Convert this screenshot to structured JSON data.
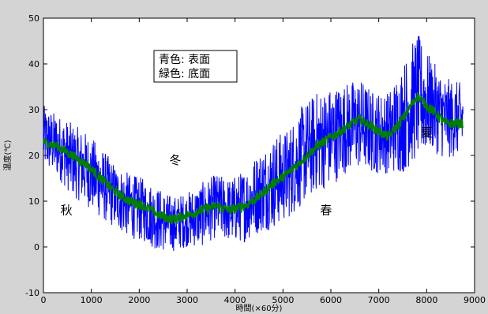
{
  "chart_data": {
    "type": "line",
    "xlabel": "時間(×60分)",
    "ylabel": "温度(℃)",
    "xlim": [
      0,
      9000
    ],
    "ylim": [
      -10,
      50
    ],
    "x_ticks": [
      0,
      1000,
      2000,
      3000,
      4000,
      5000,
      6000,
      7000,
      8000,
      9000
    ],
    "y_ticks": [
      -10,
      0,
      10,
      20,
      30,
      40,
      50
    ],
    "grid": false,
    "legend": {
      "placement": "top-center",
      "entries": [
        "青色: 表面",
        "緑色: 底面"
      ]
    },
    "annotations": [
      {
        "text": "秋",
        "x": 480,
        "y": 8
      },
      {
        "text": "冬",
        "x": 2750,
        "y": 19
      },
      {
        "text": "春",
        "x": 5900,
        "y": 8
      },
      {
        "text": "夏",
        "x": 8000,
        "y": 25
      }
    ],
    "series": [
      {
        "color": "#0000ff",
        "x": [
          0,
          300,
          600,
          900,
          1200,
          1500,
          1800,
          2100,
          2400,
          2700,
          3000,
          3300,
          3600,
          3900,
          4200,
          4500,
          4800,
          5100,
          5400,
          5700,
          6000,
          6300,
          6600,
          6900,
          7200,
          7500,
          7800,
          8100,
          8400,
          8700
        ],
        "values": [
          24,
          22,
          19,
          17,
          14,
          11,
          9,
          8,
          6,
          5,
          6,
          7,
          9,
          8,
          9,
          12,
          14,
          16,
          20,
          23,
          24,
          26,
          27,
          25,
          25,
          28,
          33,
          31,
          28,
          28
        ],
        "spread": [
          7,
          7,
          8,
          8,
          8,
          7,
          7,
          7,
          7,
          6,
          6,
          7,
          7,
          7,
          8,
          9,
          10,
          10,
          11,
          11,
          11,
          10,
          10,
          9,
          9,
          12,
          14,
          10,
          9,
          8
        ]
      },
      {
        "color": "#008000",
        "x": [
          0,
          300,
          600,
          900,
          1200,
          1500,
          1800,
          2100,
          2400,
          2700,
          3000,
          3300,
          3600,
          3900,
          4200,
          4500,
          4800,
          5100,
          5400,
          5700,
          6000,
          6300,
          6600,
          6900,
          7200,
          7500,
          7800,
          8100,
          8400,
          8700
        ],
        "values": [
          23,
          22,
          20,
          18,
          15,
          12,
          10,
          9,
          7,
          6,
          7,
          8,
          9,
          8,
          9,
          11,
          14,
          16,
          19,
          22,
          24,
          26,
          28,
          26,
          24,
          28,
          33,
          30,
          27,
          27
        ]
      }
    ]
  }
}
